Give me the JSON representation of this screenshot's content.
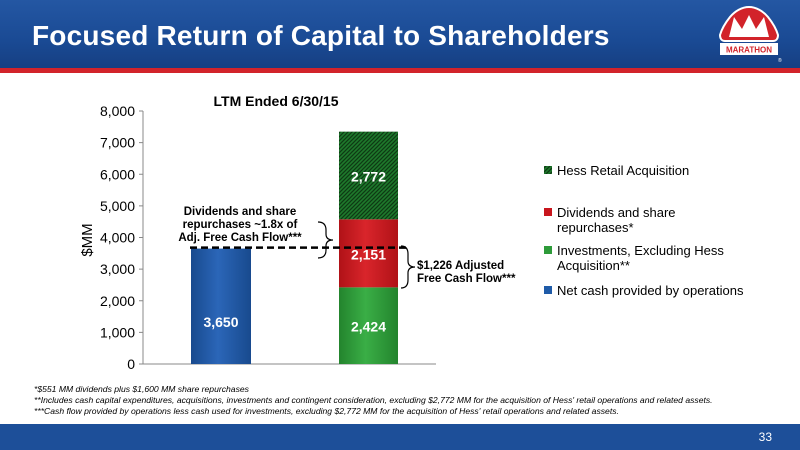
{
  "header": {
    "title": "Focused Return of Capital to Shareholders",
    "logo_text": "MARATHON"
  },
  "colors": {
    "header_blue": "#1a4a94",
    "accent_red": "#d2232a",
    "bar_blue": "#1f5ba8",
    "bar_green": "#2e9b3a",
    "bar_red": "#c8161d",
    "hatch_green": "#1e7a2c"
  },
  "chart_data": {
    "type": "bar",
    "title": "LTM Ended 6/30/15",
    "ylabel": "$MM",
    "ylim": [
      0,
      8000
    ],
    "y_ticks": [
      "0",
      "1,000",
      "2,000",
      "3,000",
      "4,000",
      "5,000",
      "6,000",
      "7,000",
      "8,000"
    ],
    "grid": false,
    "legend_position": "right",
    "bars": [
      {
        "segments": [
          {
            "series": "Net cash provided by operations",
            "value": 3650,
            "label": "3,650"
          }
        ]
      },
      {
        "segments": [
          {
            "series": "Investments, Excluding Hess Acquisition**",
            "value": 2424,
            "label": "2,424"
          },
          {
            "series": "Dividends and share repurchases*",
            "value": 2151,
            "label": "2,151"
          },
          {
            "series": "Hess Retail Acquisition",
            "value": 2772,
            "label": "2,772"
          }
        ]
      }
    ],
    "legend": [
      {
        "name": "Hess Retail Acquisition",
        "lines": [
          "Hess Retail Acquisition"
        ]
      },
      {
        "name": "Dividends and share repurchases*",
        "lines": [
          "Dividends and share",
          "repurchases*"
        ]
      },
      {
        "name": "Investments, Excluding Hess Acquisition**",
        "lines": [
          "Investments, Excluding Hess",
          "Acquisition**"
        ]
      },
      {
        "name": "Net cash provided by operations",
        "lines": [
          "Net cash provided by operations"
        ]
      }
    ],
    "reference_line": {
      "value": 3650
    },
    "annotations": [
      {
        "lines": [
          "Dividends and share",
          "repurchases ~1.8x of",
          "Adj. Free Cash Flow***"
        ]
      },
      {
        "lines": [
          "$1,226 Adjusted",
          "Free Cash Flow***"
        ]
      }
    ]
  },
  "footnotes": [
    "*$551 MM dividends plus $1,600 MM share repurchases",
    "**Includes cash capital expenditures, acquisitions, investments and contingent consideration, excluding $2,772 MM for the acquisition of Hess' retail operations and related assets.",
    "***Cash flow provided by operations less cash used for investments, excluding $2,772 MM for the acquisition of Hess' retail operations and related assets."
  ],
  "page_number": "33"
}
